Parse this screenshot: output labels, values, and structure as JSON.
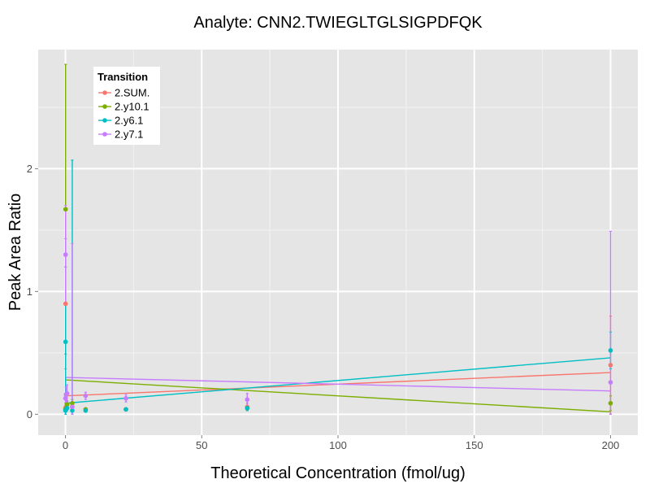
{
  "chart_data": {
    "type": "scatter",
    "title": "Analyte: CNN2.TWIEGLTGLSIGPDFQK",
    "xlabel": "Theoretical Concentration (fmol/ug)",
    "ylabel": "Peak Area Ratio",
    "xlim": [
      -10,
      210
    ],
    "ylim": [
      -0.17,
      2.97
    ],
    "x_ticks": [
      0,
      50,
      100,
      150,
      200
    ],
    "y_ticks": [
      0,
      1,
      2
    ],
    "grid": true,
    "legend": {
      "title": "Transition",
      "position": "top-left"
    },
    "background_color": "#E5E5E5",
    "series": [
      {
        "name": "2.SUM.",
        "color": "#F8766D",
        "points": [
          {
            "x": 0,
            "y": 0.05,
            "ylo": 0.04,
            "yhi": 0.06
          },
          {
            "x": 0.05,
            "y": 0.9,
            "ylo": 0.37,
            "yhi": 1.43
          },
          {
            "x": 0.2,
            "y": 0.06,
            "ylo": 0.04,
            "yhi": 0.08
          },
          {
            "x": 0.6,
            "y": 0.08,
            "ylo": 0.05,
            "yhi": 0.11
          },
          {
            "x": 2.5,
            "y": 0.06,
            "ylo": 0.03,
            "yhi": 0.09
          },
          {
            "x": 7.4,
            "y": 0.04,
            "ylo": 0.03,
            "yhi": 0.05
          },
          {
            "x": 22.2,
            "y": 0.04,
            "ylo": 0.03,
            "yhi": 0.05
          },
          {
            "x": 66.7,
            "y": 0.06,
            "ylo": 0.03,
            "yhi": 0.09
          },
          {
            "x": 200,
            "y": 0.4,
            "ylo": 0.0,
            "yhi": 0.8
          }
        ],
        "fit": {
          "x": [
            0,
            200
          ],
          "y": [
            0.15,
            0.34
          ]
        }
      },
      {
        "name": "2.y10.1",
        "color": "#7CAE00",
        "points": [
          {
            "x": 0,
            "y": 0.04,
            "ylo": 0.03,
            "yhi": 0.05
          },
          {
            "x": 0.05,
            "y": 1.67,
            "ylo": 0.49,
            "yhi": 2.85
          },
          {
            "x": 0.2,
            "y": 0.05,
            "ylo": 0.03,
            "yhi": 0.07
          },
          {
            "x": 0.6,
            "y": 0.08,
            "ylo": 0.05,
            "yhi": 0.11
          },
          {
            "x": 2.5,
            "y": 0.09,
            "ylo": 0.06,
            "yhi": 0.12
          },
          {
            "x": 7.4,
            "y": 0.04,
            "ylo": 0.03,
            "yhi": 0.05
          },
          {
            "x": 22.2,
            "y": 0.04,
            "ylo": 0.03,
            "yhi": 0.05
          },
          {
            "x": 66.7,
            "y": 0.05,
            "ylo": 0.03,
            "yhi": 0.07
          },
          {
            "x": 200,
            "y": 0.09,
            "ylo": 0.03,
            "yhi": 0.15
          }
        ],
        "fit": {
          "x": [
            0,
            200
          ],
          "y": [
            0.28,
            0.02
          ]
        }
      },
      {
        "name": "2.y6.1",
        "color": "#00BFC4",
        "points": [
          {
            "x": 0,
            "y": 0.03,
            "ylo": 0.02,
            "yhi": 0.04
          },
          {
            "x": 0.05,
            "y": 0.59,
            "ylo": 0.0,
            "yhi": 1.2
          },
          {
            "x": 0.2,
            "y": 0.04,
            "ylo": 0.03,
            "yhi": 0.05
          },
          {
            "x": 0.6,
            "y": 0.05,
            "ylo": 0.03,
            "yhi": 0.07
          },
          {
            "x": 2.5,
            "y": 0.03,
            "ylo": 0.0,
            "yhi": 2.07
          },
          {
            "x": 7.4,
            "y": 0.03,
            "ylo": 0.02,
            "yhi": 0.04
          },
          {
            "x": 22.2,
            "y": 0.04,
            "ylo": 0.03,
            "yhi": 0.05
          },
          {
            "x": 66.7,
            "y": 0.05,
            "ylo": 0.03,
            "yhi": 0.07
          },
          {
            "x": 200,
            "y": 0.52,
            "ylo": 0.37,
            "yhi": 0.67
          }
        ],
        "fit": {
          "x": [
            0,
            200
          ],
          "y": [
            0.09,
            0.46
          ]
        }
      },
      {
        "name": "2.y7.1",
        "color": "#C77CFF",
        "points": [
          {
            "x": 0,
            "y": 0.13,
            "ylo": 0.09,
            "yhi": 0.17
          },
          {
            "x": 0.05,
            "y": 1.3,
            "ylo": 0.9,
            "yhi": 1.7
          },
          {
            "x": 0.2,
            "y": 0.16,
            "ylo": 0.1,
            "yhi": 0.22
          },
          {
            "x": 0.6,
            "y": 0.17,
            "ylo": 0.1,
            "yhi": 0.24
          },
          {
            "x": 2.5,
            "y": 0.06,
            "ylo": 0.0,
            "yhi": 1.39
          },
          {
            "x": 7.4,
            "y": 0.15,
            "ylo": 0.12,
            "yhi": 0.18
          },
          {
            "x": 22.2,
            "y": 0.13,
            "ylo": 0.1,
            "yhi": 0.16
          },
          {
            "x": 66.7,
            "y": 0.12,
            "ylo": 0.07,
            "yhi": 0.17
          },
          {
            "x": 200,
            "y": 0.26,
            "ylo": 0.0,
            "yhi": 1.49
          }
        ],
        "fit": {
          "x": [
            0,
            200
          ],
          "y": [
            0.3,
            0.19
          ]
        }
      }
    ]
  }
}
